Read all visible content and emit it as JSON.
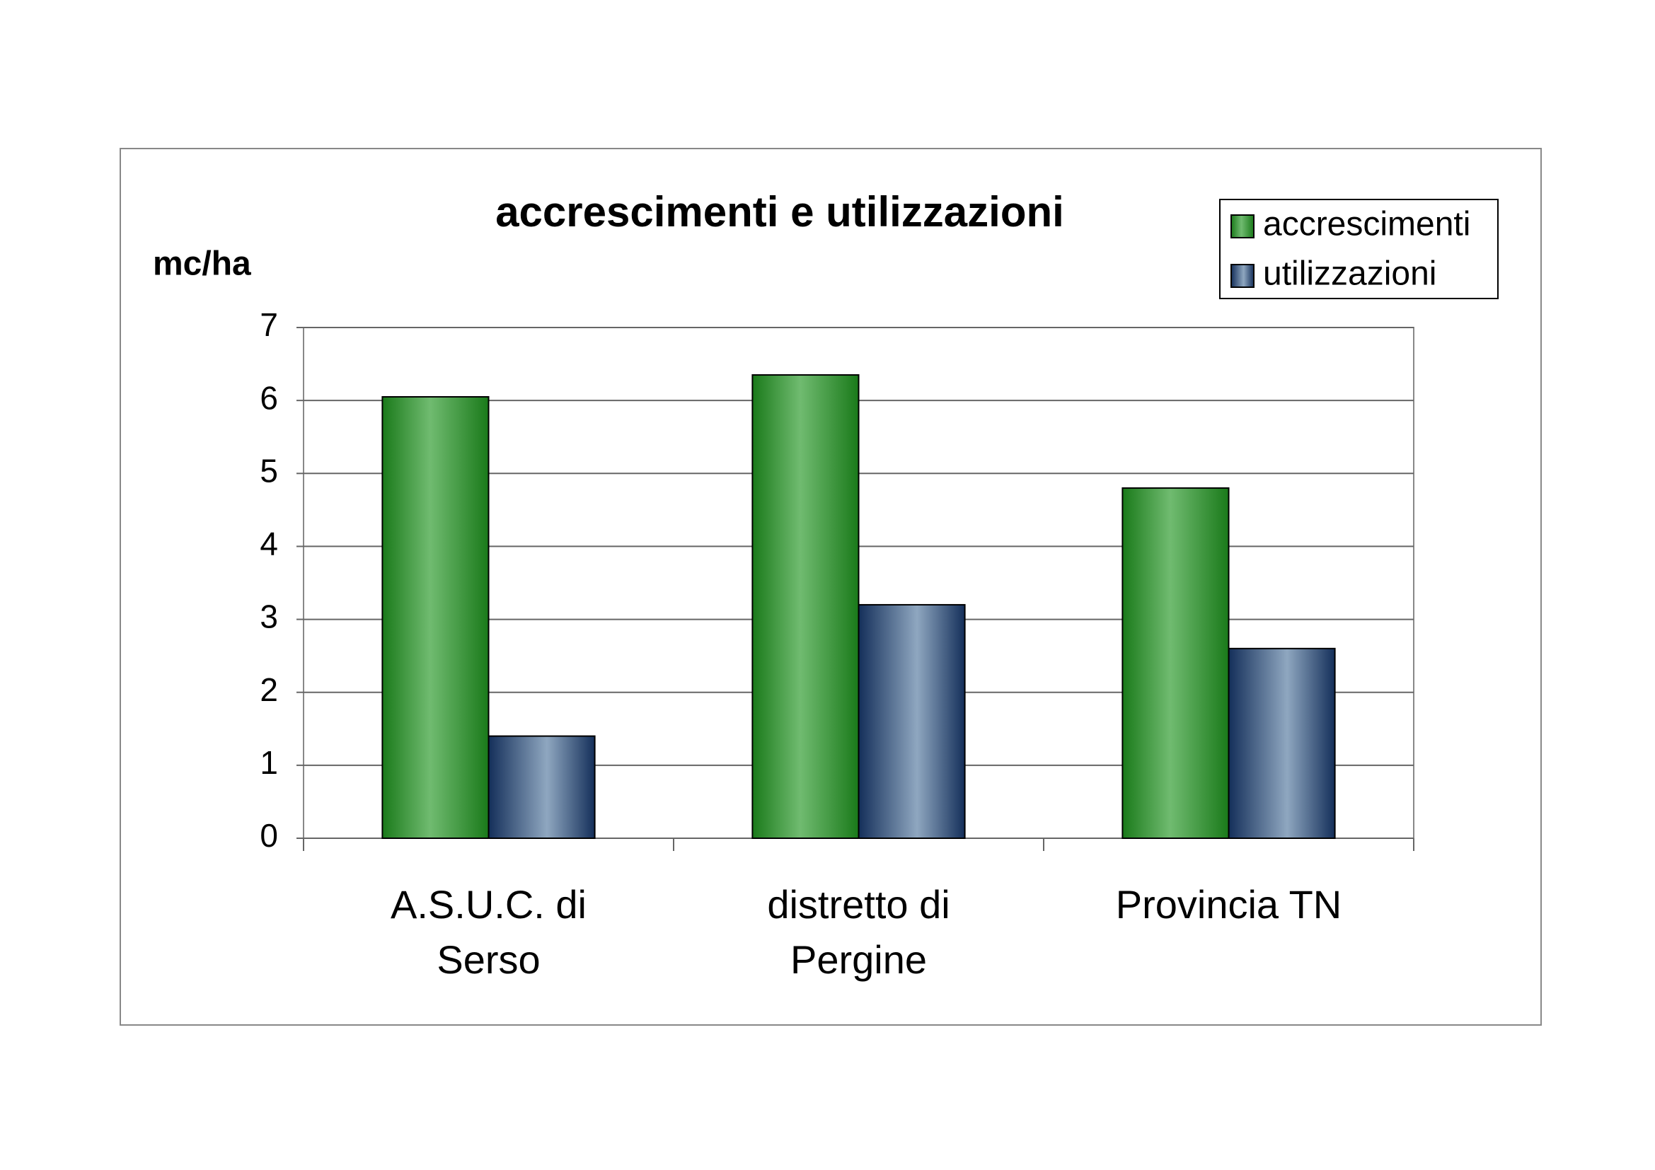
{
  "chart_data": {
    "type": "bar",
    "title": "accrescimenti e utilizzazioni",
    "y_label": "mc/ha",
    "categories": [
      "A.S.U.C. di Serso",
      "distretto di Pergine",
      "Provincia TN"
    ],
    "series": [
      {
        "name": "accrescimenti",
        "color": "#70bb70",
        "values": [
          6.05,
          6.35,
          4.8
        ]
      },
      {
        "name": "utilizzazioni",
        "color": "#8fa7c0",
        "values": [
          1.4,
          3.2,
          2.6
        ]
      }
    ],
    "ylim": [
      0,
      7
    ],
    "yticks": [
      0,
      1,
      2,
      3,
      4,
      5,
      6,
      7
    ],
    "grid": true,
    "legend": "top-right"
  }
}
